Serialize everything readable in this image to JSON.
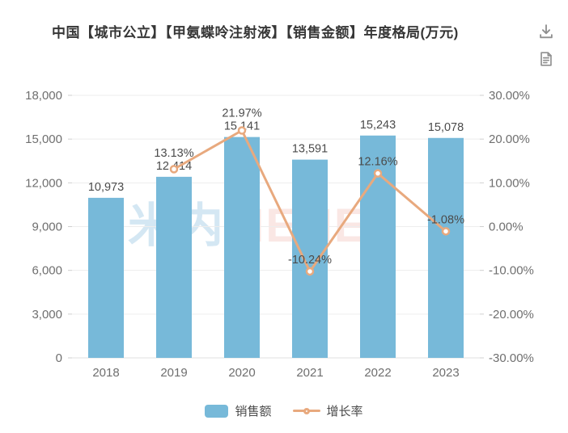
{
  "header": {
    "title": "中国【城市公立】【甲氨蝶呤注射液】【销售金额】年度格局(万元)",
    "tools": [
      {
        "name": "download-icon",
        "action": "下载"
      },
      {
        "name": "data-view-icon",
        "action": "数据视图"
      }
    ]
  },
  "watermark": {
    "part1": "米内",
    "part2": "MENET",
    "color1": "rgba(148,195,226,0.40)",
    "color2": "rgba(238,180,170,0.32)"
  },
  "chart_data": {
    "type": "bar+line combo",
    "categories": [
      "2018",
      "2019",
      "2020",
      "2021",
      "2022",
      "2023"
    ],
    "series": [
      {
        "name": "销售额",
        "type": "bar",
        "axis": "left",
        "color": "#77b9d9",
        "values": [
          10973,
          12414,
          15141,
          13591,
          15243,
          15078
        ],
        "labels": [
          "10,973",
          "12,414",
          "15,141",
          "13,591",
          "15,243",
          "15,078"
        ]
      },
      {
        "name": "增长率",
        "type": "line",
        "axis": "right",
        "color": "#e8a97e",
        "values": [
          null,
          13.13,
          21.97,
          -10.24,
          12.16,
          -1.08
        ],
        "labels": [
          null,
          "13.13%",
          "21.97%",
          "-10.24%",
          "12.16%",
          "-1.08%"
        ]
      }
    ],
    "left_axis": {
      "min": 0,
      "max": 18000,
      "step": 3000,
      "tick_labels": [
        "0",
        "3,000",
        "6,000",
        "9,000",
        "12,000",
        "15,000",
        "18,000"
      ]
    },
    "right_axis": {
      "min": -30,
      "max": 30,
      "step": 10,
      "tick_labels": [
        "-30.00%",
        "-20.00%",
        "-10.00%",
        "0.00%",
        "10.00%",
        "20.00%",
        "30.00%"
      ]
    },
    "grid": true,
    "legend_position": "bottom",
    "label_color": "#4b4b4b",
    "axis_label_color": "#6f6f6f",
    "grid_color": "#ededed",
    "axis_line_color": "#e2e2e2"
  }
}
